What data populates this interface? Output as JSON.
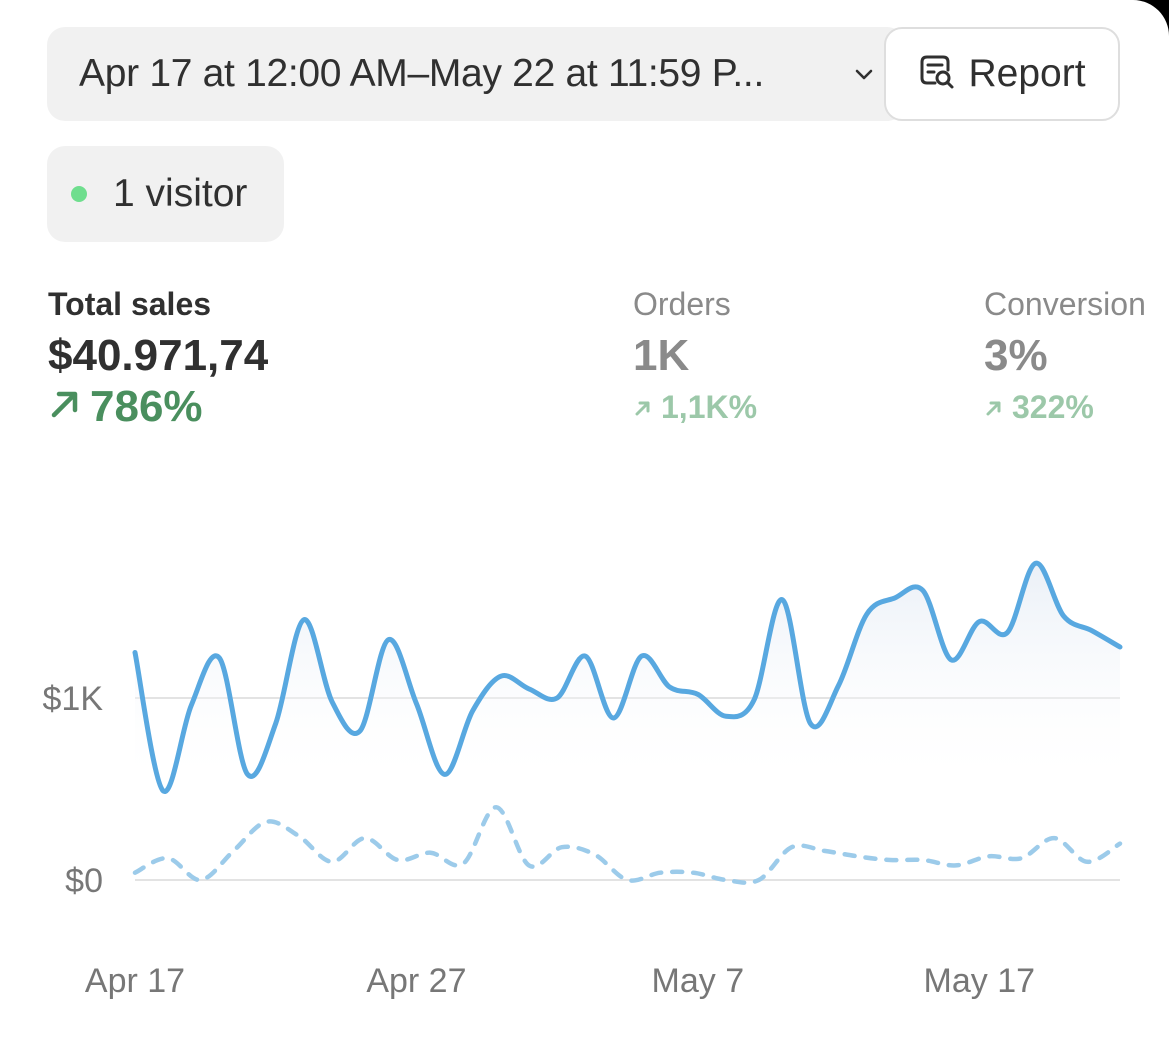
{
  "header": {
    "date_range": "Apr 17 at 12:00 AM–May 22 at 11:59 P...",
    "report_label": "Report"
  },
  "visitors": {
    "label": "1 visitor",
    "dot_color": "#6fde8e"
  },
  "metrics": {
    "total_sales": {
      "label": "Total sales",
      "value": "$40.971,74",
      "change": "786%"
    },
    "orders": {
      "label": "Orders",
      "value": "1K",
      "change": "1,1K%"
    },
    "conversion": {
      "label": "Conversion",
      "value": "3%",
      "change": "322%"
    }
  },
  "chart_data": {
    "type": "line",
    "x_start": "Apr 17",
    "x_end": "May 22",
    "x_ticks": [
      "Apr 17",
      "Apr 27",
      "May 7",
      "May 17"
    ],
    "y_ticks": [
      "$0",
      "$1K"
    ],
    "ylim": [
      0,
      2000
    ],
    "grid": true,
    "colors": {
      "current": "#58a8e0",
      "comparison": "#9ccbea"
    },
    "series": [
      {
        "style": "solid",
        "values": [
          1250,
          490,
          960,
          1220,
          580,
          860,
          1430,
          980,
          820,
          1320,
          970,
          580,
          930,
          1120,
          1050,
          1000,
          1230,
          890,
          1230,
          1060,
          1020,
          900,
          990,
          1540,
          860,
          1070,
          1460,
          1550,
          1590,
          1210,
          1420,
          1360,
          1740,
          1450,
          1370,
          1280
        ]
      },
      {
        "style": "dashed",
        "values": [
          40,
          120,
          0,
          160,
          320,
          240,
          100,
          230,
          110,
          150,
          90,
          400,
          80,
          180,
          140,
          0,
          40,
          40,
          0,
          0,
          180,
          160,
          130,
          110,
          110,
          80,
          130,
          120,
          230,
          100,
          200
        ]
      }
    ]
  }
}
